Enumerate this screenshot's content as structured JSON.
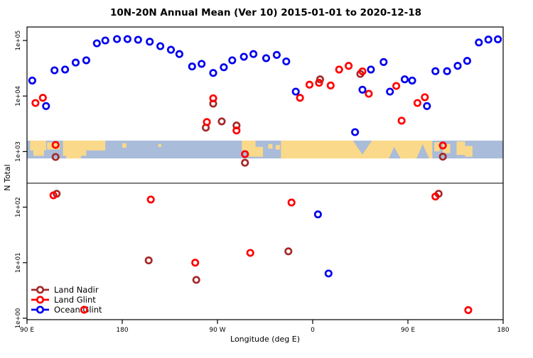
{
  "chart_data": {
    "type": "scatter",
    "title": "10N-20N Annual Mean (Ver 10)   2015-01-01 to 2020-12-18",
    "xlabel": "Longitude (deg E)",
    "ylabel": "N Total",
    "grid": false,
    "legend_position": "bottom-left",
    "x_axis": {
      "range_deg": [
        90,
        540
      ],
      "ticks": [
        {
          "deg": 90,
          "label": "90 E"
        },
        {
          "deg": 180,
          "label": "180"
        },
        {
          "deg": 270,
          "label": "90 W"
        },
        {
          "deg": 360,
          "label": "0"
        },
        {
          "deg": 450,
          "label": "90 E"
        },
        {
          "deg": 540,
          "label": "180"
        }
      ]
    },
    "y_axis": {
      "scale": "log10",
      "range": [
        1,
        100000
      ],
      "ticks": [
        {
          "value": 1,
          "label": "1e+00"
        },
        {
          "value": 10,
          "label": "1e+01"
        },
        {
          "value": 100,
          "label": "1e+02"
        },
        {
          "value": 1000,
          "label": "1e+03"
        },
        {
          "value": 10000,
          "label": "1e+04"
        },
        {
          "value": 100000,
          "label": "1e+05"
        }
      ]
    },
    "reference_line": {
      "value": 270,
      "color": "#7a7a7a"
    },
    "map_band": {
      "description": "world-map strip 10N-20N drawn across plot",
      "top_value": 1580,
      "bottom_value": 750,
      "ocean_color": "#a9bcd9",
      "land_color": "#fbd98a",
      "land_rects_deg": [
        [
          93,
          108,
          0.0,
          0.55
        ],
        [
          96,
          106,
          0.5,
          0.85
        ],
        [
          109,
          121,
          0.1,
          0.5
        ],
        [
          124,
          146,
          0.0,
          0.85
        ],
        [
          146,
          164,
          0.0,
          0.55
        ],
        [
          127,
          141,
          0.8,
          1.0
        ],
        [
          180,
          184,
          0.15,
          0.4
        ],
        [
          214,
          217,
          0.2,
          0.35
        ],
        [
          293,
          306,
          0.0,
          0.55
        ],
        [
          299,
          313,
          0.35,
          0.9
        ],
        [
          318,
          322,
          0.2,
          0.45
        ],
        [
          325,
          329,
          0.25,
          0.5
        ],
        [
          330,
          473,
          0.0,
          1.0
        ],
        [
          475,
          480,
          0.1,
          0.6
        ],
        [
          483,
          490,
          0.2,
          0.7
        ],
        [
          496,
          504,
          0.05,
          0.8
        ],
        [
          504,
          511,
          0.3,
          0.9
        ]
      ],
      "ocean_notches_deg": [
        [
          [
            398,
            0.0
          ],
          [
            416,
            0.0
          ],
          [
            407,
            0.78
          ]
        ],
        [
          [
            432,
            1.0
          ],
          [
            443,
            1.0
          ],
          [
            437,
            0.35
          ]
        ],
        [
          [
            458,
            1.0
          ],
          [
            470,
            1.0
          ],
          [
            464,
            0.2
          ]
        ]
      ]
    },
    "series": [
      {
        "name": "Land Nadir",
        "color": "#a52a2a",
        "points": [
          {
            "x": 117,
            "y": 800
          },
          {
            "x": 118,
            "y": 174
          },
          {
            "x": 205,
            "y": 11
          },
          {
            "x": 250,
            "y": 4.9
          },
          {
            "x": 259,
            "y": 2700
          },
          {
            "x": 266,
            "y": 7300
          },
          {
            "x": 274,
            "y": 3500
          },
          {
            "x": 288,
            "y": 2950
          },
          {
            "x": 296,
            "y": 630
          },
          {
            "x": 337,
            "y": 16
          },
          {
            "x": 367,
            "y": 20000
          },
          {
            "x": 405,
            "y": 25000
          },
          {
            "x": 479,
            "y": 174
          },
          {
            "x": 483,
            "y": 810
          }
        ]
      },
      {
        "name": "Land Glint",
        "color": "#ff0000",
        "points": [
          {
            "x": 98,
            "y": 7500
          },
          {
            "x": 105,
            "y": 9300
          },
          {
            "x": 115,
            "y": 163
          },
          {
            "x": 117,
            "y": 1320
          },
          {
            "x": 144,
            "y": 1.42
          },
          {
            "x": 207,
            "y": 137
          },
          {
            "x": 249,
            "y": 10
          },
          {
            "x": 260,
            "y": 3400
          },
          {
            "x": 266,
            "y": 9100
          },
          {
            "x": 288,
            "y": 2400
          },
          {
            "x": 296,
            "y": 900
          },
          {
            "x": 301,
            "y": 15
          },
          {
            "x": 340,
            "y": 121
          },
          {
            "x": 348,
            "y": 9300
          },
          {
            "x": 357,
            "y": 16000
          },
          {
            "x": 366,
            "y": 17300
          },
          {
            "x": 377,
            "y": 15500
          },
          {
            "x": 385,
            "y": 30000
          },
          {
            "x": 394,
            "y": 35000
          },
          {
            "x": 407,
            "y": 27800
          },
          {
            "x": 413,
            "y": 11000
          },
          {
            "x": 439,
            "y": 15200
          },
          {
            "x": 444,
            "y": 3600
          },
          {
            "x": 459,
            "y": 7500
          },
          {
            "x": 466,
            "y": 9500
          },
          {
            "x": 476,
            "y": 155
          },
          {
            "x": 483,
            "y": 1290
          },
          {
            "x": 507,
            "y": 1.4
          }
        ]
      },
      {
        "name": "Ocean Glint",
        "color": "#0000ee",
        "points": [
          {
            "x": 95,
            "y": 19000
          },
          {
            "x": 108,
            "y": 6600
          },
          {
            "x": 116,
            "y": 29000
          },
          {
            "x": 126,
            "y": 30000
          },
          {
            "x": 136,
            "y": 40000
          },
          {
            "x": 146,
            "y": 44000
          },
          {
            "x": 156,
            "y": 89000
          },
          {
            "x": 164,
            "y": 100000
          },
          {
            "x": 175,
            "y": 106000
          },
          {
            "x": 185,
            "y": 106000
          },
          {
            "x": 195,
            "y": 103000
          },
          {
            "x": 206,
            "y": 95000
          },
          {
            "x": 216,
            "y": 79000
          },
          {
            "x": 226,
            "y": 68000
          },
          {
            "x": 234,
            "y": 57000
          },
          {
            "x": 246,
            "y": 34000
          },
          {
            "x": 255,
            "y": 38000
          },
          {
            "x": 266,
            "y": 26000
          },
          {
            "x": 276,
            "y": 33000
          },
          {
            "x": 284,
            "y": 44000
          },
          {
            "x": 295,
            "y": 51000
          },
          {
            "x": 304,
            "y": 57000
          },
          {
            "x": 316,
            "y": 48000
          },
          {
            "x": 326,
            "y": 55000
          },
          {
            "x": 335,
            "y": 42000
          },
          {
            "x": 344,
            "y": 12000
          },
          {
            "x": 365,
            "y": 74
          },
          {
            "x": 375,
            "y": 6.4
          },
          {
            "x": 400,
            "y": 2240
          },
          {
            "x": 407,
            "y": 13000
          },
          {
            "x": 415,
            "y": 30000
          },
          {
            "x": 427,
            "y": 41000
          },
          {
            "x": 433,
            "y": 12000
          },
          {
            "x": 447,
            "y": 20000
          },
          {
            "x": 454,
            "y": 19000
          },
          {
            "x": 468,
            "y": 6600
          },
          {
            "x": 476,
            "y": 28000
          },
          {
            "x": 487,
            "y": 28000
          },
          {
            "x": 497,
            "y": 35000
          },
          {
            "x": 506,
            "y": 43000
          },
          {
            "x": 517,
            "y": 92000
          },
          {
            "x": 526,
            "y": 104000
          },
          {
            "x": 535,
            "y": 105000
          }
        ]
      }
    ]
  }
}
